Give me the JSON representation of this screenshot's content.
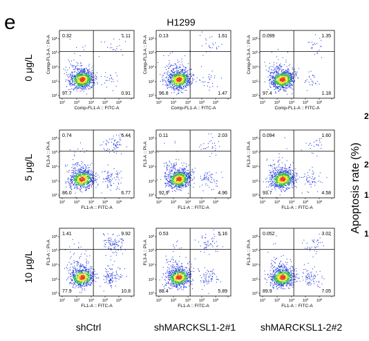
{
  "figure": {
    "panel_letter": "e",
    "cell_line": "H1299",
    "rows": [
      "0 μg/L",
      "5 μg/L",
      "10 μg/L"
    ],
    "cols": [
      "shCtrl",
      "shMARCKSL1-2#1",
      "shMARCKSL1-2#2"
    ],
    "right_label": "Apoptosis rate (%)",
    "right_ticks": [
      "2",
      "2",
      "1",
      "1"
    ]
  },
  "colors": {
    "frame": "#000000",
    "density_low": "#2a3fe0",
    "density_mid": "#29c03a",
    "density_high": "#f0e02a",
    "density_peak": "#e63a20"
  },
  "chart_data": [
    {
      "type": "scatter",
      "row": 0,
      "col": 0,
      "ylabel": "Comp-FL3-A :: PI-A",
      "xlabel": "Comp-FL1-A :: FITC-A",
      "quadrants": {
        "UL": "0.32",
        "UR": "1.11",
        "LL": "97.7",
        "LR": "0.91"
      }
    },
    {
      "type": "scatter",
      "row": 0,
      "col": 1,
      "ylabel": "Comp-FL3-A :: PI-A",
      "xlabel": "Comp-FL1-A :: FITC-A",
      "quadrants": {
        "UL": "0.13",
        "UR": "1.61",
        "LL": "96.8",
        "LR": "1.47"
      }
    },
    {
      "type": "scatter",
      "row": 0,
      "col": 2,
      "ylabel": "Comp-FL3-A :: PI-A",
      "xlabel": "Comp-FL1-A :: FITC-A",
      "quadrants": {
        "UL": "0.099",
        "UR": "1.35",
        "LL": "97.4",
        "LR": "1.18"
      }
    },
    {
      "type": "scatter",
      "row": 1,
      "col": 0,
      "ylabel": "FL3-A :: PI-A",
      "xlabel": "FL1-A :: FITC-A",
      "quadrants": {
        "UL": "0.74",
        "UR": "6.44",
        "LL": "86.0",
        "LR": "6.77"
      }
    },
    {
      "type": "scatter",
      "row": 1,
      "col": 1,
      "ylabel": "FL3-A :: PI-A",
      "xlabel": "FL1-A :: FITC-A",
      "quadrants": {
        "UL": "0.11",
        "UR": "2.03",
        "LL": "92.9",
        "LR": "4.96"
      }
    },
    {
      "type": "scatter",
      "row": 1,
      "col": 2,
      "ylabel": "FL3-A :: PI-A",
      "xlabel": "FL1-A :: FITC-A",
      "quadrants": {
        "UL": "0.094",
        "UR": "1.60",
        "LL": "93.7",
        "LR": "4.58"
      }
    },
    {
      "type": "scatter",
      "row": 2,
      "col": 0,
      "ylabel": "FL3-A :: PI-A",
      "xlabel": "FL1-A :: FITC-A",
      "quadrants": {
        "UL": "1.41",
        "UR": "9.92",
        "LL": "77.9",
        "LR": "10.8"
      }
    },
    {
      "type": "scatter",
      "row": 2,
      "col": 1,
      "ylabel": "FL3-A :: PI-A",
      "xlabel": "FL1-A :: FITC-A",
      "quadrants": {
        "UL": "0.53",
        "UR": "5.16",
        "LL": "88.4",
        "LR": "5.89"
      }
    },
    {
      "type": "scatter",
      "row": 2,
      "col": 2,
      "ylabel": "FL3-A :: PI-A",
      "xlabel": "FL1-A :: FITC-A",
      "quadrants": {
        "UL": "0.052",
        "UR": "3.02",
        "LL": "89.9",
        "LR": "7.05"
      }
    }
  ]
}
